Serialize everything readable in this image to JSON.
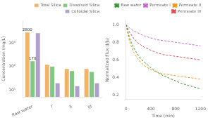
{
  "chart_data": [
    {
      "type": "bar",
      "categories": [
        "Raw water",
        "I",
        "II",
        "III"
      ],
      "series": [
        {
          "name": "Total Silica",
          "color": "#f0b469",
          "values": [
            2800,
            120,
            80,
            80
          ]
        },
        {
          "name": "Dissolved Silica",
          "color": "#82c882",
          "values": [
            170,
            100,
            65,
            60
          ]
        },
        {
          "name": "Colloidal Silica",
          "color": "#b09fcc",
          "values": [
            2630,
            20,
            15,
            20
          ]
        }
      ],
      "ylabel": "Concentration (mg/L)",
      "log": "y",
      "ylim": [
        5,
        9000
      ],
      "yticks": [
        {
          "value": 10,
          "label": "10¹"
        },
        {
          "value": 100,
          "label": "10²"
        },
        {
          "value": 1000,
          "label": "10³"
        }
      ],
      "grid": false,
      "legend": "upper right",
      "annotations": [
        {
          "text": "2800",
          "category": "Raw water",
          "series": "Total Silica"
        },
        {
          "text": "170",
          "category": "Raw water",
          "series": "Dissolved Silica"
        }
      ]
    },
    {
      "type": "line",
      "x": [
        0,
        60,
        120,
        180,
        240,
        300,
        400,
        500,
        600,
        700,
        800,
        900,
        1000,
        1100,
        1200
      ],
      "series": [
        {
          "name": "Raw water",
          "color": "#3a9a3a",
          "values": [
            1.0,
            0.84,
            0.74,
            0.67,
            0.61,
            0.57,
            0.51,
            0.46,
            0.42,
            0.39,
            0.36,
            0.33,
            0.31,
            0.29,
            0.27
          ]
        },
        {
          "name": "Permeate I",
          "color": "#cc66cc",
          "values": [
            1.0,
            0.96,
            0.93,
            0.91,
            0.89,
            0.87,
            0.85,
            0.83,
            0.82,
            0.81,
            0.8,
            0.79,
            0.78,
            0.77,
            0.76
          ]
        },
        {
          "name": "Permeate II",
          "color": "#f59a20",
          "values": [
            1.0,
            0.8,
            0.69,
            0.62,
            0.57,
            0.53,
            0.49,
            0.46,
            0.44,
            0.43,
            0.42,
            0.41,
            0.4,
            0.39,
            0.38
          ]
        },
        {
          "name": "Permeate III",
          "color": "#e05050",
          "values": [
            1.0,
            0.91,
            0.85,
            0.8,
            0.77,
            0.74,
            0.71,
            0.68,
            0.66,
            0.65,
            0.64,
            0.63,
            0.62,
            0.61,
            0.6
          ]
        }
      ],
      "line_style": "dashed",
      "xlabel": "Time (min)",
      "ylabel": "Normalized Flux (J/J₀)",
      "xlim": [
        0,
        1200
      ],
      "ylim": [
        0.15,
        1.05
      ],
      "xticks": [
        0,
        400,
        800,
        1200
      ],
      "yticks": [
        {
          "value": 0.2,
          "label": "0.2"
        },
        {
          "value": 0.4,
          "label": "0.4"
        },
        {
          "value": 0.6,
          "label": "0.6"
        },
        {
          "value": 0.8,
          "label": "0.8"
        },
        {
          "value": 1,
          "label": "1.0"
        }
      ],
      "grid": false,
      "legend": "upper right"
    }
  ]
}
